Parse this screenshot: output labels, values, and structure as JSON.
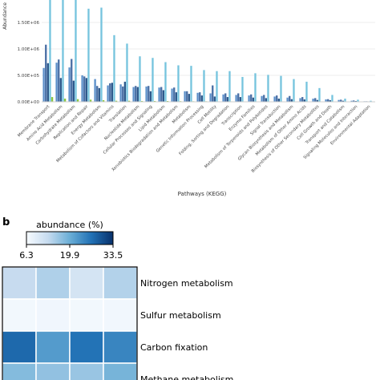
{
  "panel_b_label": "b",
  "chart_data": [
    {
      "type": "bar",
      "xlabel": "Pathways (KEGG)",
      "ylabel": "Abundance",
      "ylim": [
        0,
        2000000
      ],
      "yticks": [
        0,
        500000,
        1000000,
        1500000
      ],
      "ytick_labels": [
        "0.00E+00",
        "5.00E+05",
        "1.00E+06",
        "1.50E+06"
      ],
      "grid": true,
      "categories": [
        "Membrane Transport",
        "Amino Acid Metabolism",
        "Carbohydrate Metabolism",
        "Replication and Repair",
        "Energy Metabolism",
        "Metabolism of Cofactors and Vitamins",
        "Translation",
        "Nucleotide Metabolism",
        "Cellular Processes and Signaling",
        "Lipid Metabolism",
        "Xenobiotics Biodegradation and Metabolism",
        "Metabolism",
        "Genetic Information Processing",
        "Cell Motility",
        "Folding, Sorting and Degradation",
        "Transcription",
        "Enzyme Families",
        "Metabolism of Terpenoids and Polyketides",
        "Signal Transduction",
        "Glycan Biosynthesis and Metabolism",
        "Metabolism of Other Amino Acids",
        "Biosynthesis of Other Secondary Metabolites",
        "Cell Growth and Death",
        "Transport and Catabolism",
        "Signaling Molecules and Interaction",
        "Environmental Adaptation"
      ],
      "series": [
        {
          "color": "#5b8fc9",
          "values": [
            640000,
            740000,
            650000,
            500000,
            430000,
            310000,
            330000,
            280000,
            290000,
            270000,
            250000,
            200000,
            170000,
            160000,
            140000,
            130000,
            120000,
            110000,
            100000,
            80000,
            70000,
            60000,
            45000,
            35000,
            20000,
            10000
          ]
        },
        {
          "color": "#4a6fa5",
          "values": [
            1080000,
            800000,
            810000,
            480000,
            300000,
            350000,
            290000,
            300000,
            300000,
            280000,
            270000,
            200000,
            180000,
            310000,
            160000,
            160000,
            140000,
            130000,
            120000,
            110000,
            90000,
            70000,
            50000,
            40000,
            25000,
            10000
          ]
        },
        {
          "color": "#2e5a8c",
          "values": [
            730000,
            450000,
            400000,
            450000,
            260000,
            360000,
            380000,
            280000,
            200000,
            220000,
            180000,
            150000,
            120000,
            100000,
            90000,
            90000,
            80000,
            70000,
            60000,
            50000,
            45000,
            35000,
            30000,
            20000,
            15000,
            8000
          ]
        },
        {
          "color": "#76c4de",
          "values": [
            1980000,
            1980000,
            1960000,
            1760000,
            1780000,
            1260000,
            1100000,
            860000,
            830000,
            750000,
            690000,
            680000,
            600000,
            580000,
            580000,
            470000,
            540000,
            510000,
            490000,
            430000,
            380000,
            260000,
            130000,
            60000,
            40000,
            20000
          ]
        },
        {
          "color": "#8cc63f",
          "values": [
            90000,
            60000,
            50000,
            40000,
            30000,
            20000,
            20000,
            15000,
            15000,
            15000,
            12000,
            10000,
            10000,
            8000,
            8000,
            6000,
            6000,
            5000,
            5000,
            4000,
            4000,
            3000,
            2000,
            2000,
            1000,
            1000
          ]
        }
      ]
    },
    {
      "type": "heatmap",
      "colorbar_title": "abundance (%)",
      "colorbar_ticks": [
        "6.3",
        "19.9",
        "33.5"
      ],
      "colorbar_range": [
        6.3,
        33.5
      ],
      "rows": [
        "Nitrogen metabolism",
        "Sulfur metabolism",
        "Carbon fixation",
        "Methane metabolism"
      ],
      "values": [
        [
          13.0,
          14.8,
          11.2,
          14.5
        ],
        [
          7.0,
          7.3,
          7.0,
          7.2
        ],
        [
          27.5,
          22.0,
          26.5,
          24.5
        ],
        [
          18.0,
          17.0,
          16.5,
          19.0
        ]
      ],
      "color_low": "#f7fbff",
      "color_high": "#08306b"
    }
  ]
}
